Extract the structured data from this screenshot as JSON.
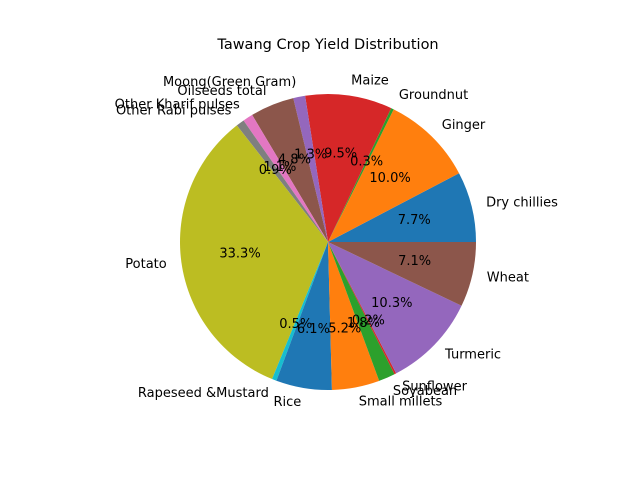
{
  "chart_data": {
    "type": "pie",
    "title": "Tawang Crop Yield Distribution",
    "autopct_format": "{:.1f}%",
    "start_angle_deg": 0,
    "direction": "counterclockwise",
    "slices": [
      {
        "label": "Dry chillies",
        "percent": 7.7,
        "color": "#1f77b4"
      },
      {
        "label": "Ginger",
        "percent": 10.0,
        "color": "#ff7f0e"
      },
      {
        "label": "Groundnut",
        "percent": 0.3,
        "color": "#2ca02c"
      },
      {
        "label": "Maize",
        "percent": 9.5,
        "color": "#d62728"
      },
      {
        "label": "Moong(Green Gram)",
        "percent": 1.3,
        "color": "#9467bd"
      },
      {
        "label": "Oilseeds total",
        "percent": 4.8,
        "color": "#8c564b"
      },
      {
        "label": "Other Kharif pulses",
        "percent": 1.1,
        "color": "#e377c2"
      },
      {
        "label": "Other Rabi pulses",
        "percent": 0.9,
        "color": "#7f7f7f"
      },
      {
        "label": "Potato",
        "percent": 33.3,
        "color": "#bcbd22"
      },
      {
        "label": "Rapeseed &Mustard",
        "percent": 0.5,
        "color": "#17becf"
      },
      {
        "label": "Rice",
        "percent": 6.1,
        "color": "#1f77b4"
      },
      {
        "label": "Small millets",
        "percent": 5.2,
        "color": "#ff7f0e"
      },
      {
        "label": "Soyabean",
        "percent": 1.8,
        "color": "#2ca02c"
      },
      {
        "label": "Sunflower",
        "percent": 0.2,
        "color": "#d62728"
      },
      {
        "label": "Turmeric",
        "percent": 10.3,
        "color": "#9467bd"
      },
      {
        "label": "Wheat",
        "percent": 7.1,
        "color": "#8c564b"
      }
    ]
  }
}
